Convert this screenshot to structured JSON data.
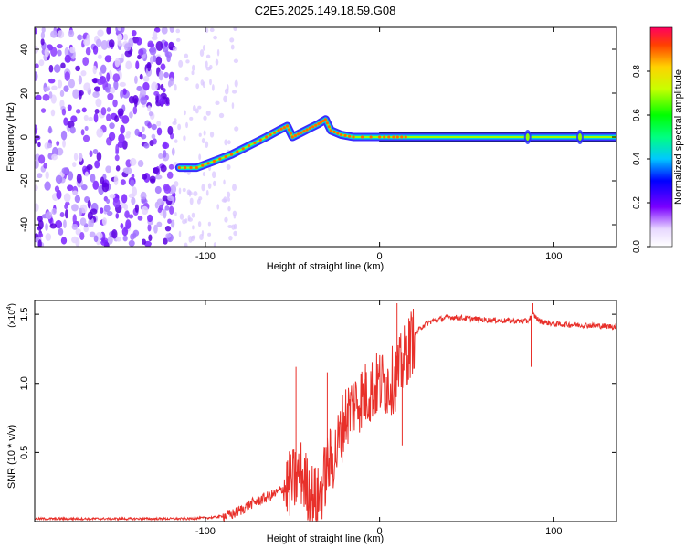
{
  "title": "C2E5.2025.149.18.59.G08",
  "chart_data": [
    {
      "type": "heatmap",
      "xlabel": "Height of straight line (km)",
      "ylabel": "Frequency (Hz)",
      "xlim": [
        -198,
        136
      ],
      "ylim": [
        -50,
        50
      ],
      "xticks": [
        -100,
        0,
        100
      ],
      "yticks": [
        -40,
        -20,
        0,
        20,
        40
      ],
      "trace": {
        "x": [
          -115,
          -105,
          -95,
          -85,
          -75,
          -65,
          -58,
          -53,
          -50,
          -45,
          -40,
          -35,
          -31,
          -28,
          -22,
          -15,
          0,
          8,
          15,
          50,
          85,
          100,
          136
        ],
        "y": [
          -14,
          -14,
          -11,
          -8,
          -4,
          0,
          3,
          5,
          0,
          2,
          4,
          6,
          8,
          3,
          1,
          0,
          0,
          0,
          0,
          0,
          0,
          0,
          0
        ]
      },
      "noise_region_x": [
        -198,
        -118
      ],
      "colorbar": {
        "label": "Normalized spectral amplitude",
        "range": [
          0,
          1
        ],
        "ticks": [
          "0.0",
          "0.2",
          "0.4",
          "0.6",
          "0.8"
        ]
      }
    },
    {
      "type": "line",
      "xlabel": "Height of straight line (km)",
      "ylabel": "SNR (10 * v/v)",
      "scale_label": "(x10",
      "scale_exp": "4",
      "scale_close": ")",
      "xlim": [
        -198,
        136
      ],
      "ylim": [
        0,
        1.6
      ],
      "xticks": [
        -100,
        0,
        100
      ],
      "yticks": [
        "0.5",
        "1.0",
        "1.5"
      ],
      "color": "#e8302a",
      "anchors": {
        "x": [
          -198,
          -110,
          -95,
          -85,
          -80,
          -75,
          -70,
          -60,
          -50,
          -45,
          -40,
          -35,
          -30,
          -25,
          -20,
          -15,
          -10,
          -5,
          0,
          5,
          10,
          15,
          20,
          25,
          30,
          40,
          60,
          80,
          85,
          88,
          92,
          100,
          120,
          136
        ],
        "y": [
          0.02,
          0.02,
          0.03,
          0.05,
          0.08,
          0.12,
          0.15,
          0.2,
          0.28,
          0.35,
          0.2,
          0.15,
          0.4,
          0.5,
          0.75,
          0.85,
          0.9,
          0.95,
          1.0,
          1.0,
          1.05,
          1.2,
          1.35,
          1.42,
          1.45,
          1.48,
          1.46,
          1.45,
          1.45,
          1.5,
          1.45,
          1.43,
          1.42,
          1.41
        ]
      },
      "spikes": [
        {
          "x": -48,
          "y": 1.12
        },
        {
          "x": -30,
          "y": 1.08
        },
        {
          "x": 10,
          "y": 1.58
        },
        {
          "x": 13,
          "y": 0.55
        },
        {
          "x": 88,
          "y": 1.58
        },
        {
          "x": 87,
          "y": 1.12
        }
      ]
    }
  ]
}
